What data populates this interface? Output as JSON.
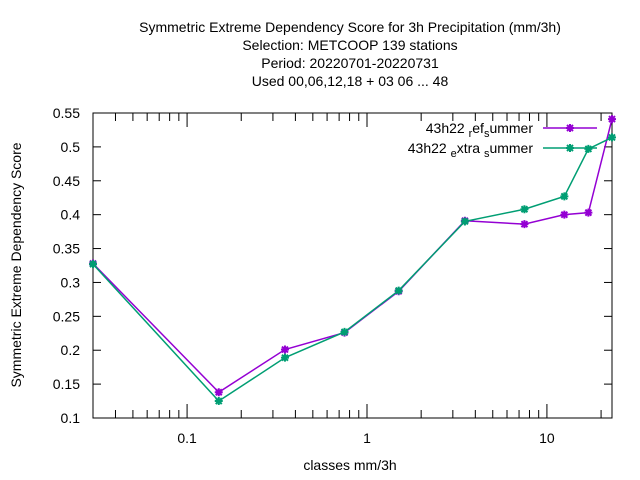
{
  "chart_data": {
    "type": "line",
    "title_lines": [
      "Symmetric Extreme Dependency Score  for 3h Precipitation (mm/3h)",
      "Selection: METCOOP    139 stations",
      "Period: 20220701-20220731",
      "Used  00,06,12,18  + 03 06 ... 48"
    ],
    "xlabel": "classes mm/3h",
    "ylabel": "Symmetric Extreme Dependency Score",
    "x_scale": "log",
    "xlim": [
      0.03,
      23
    ],
    "ylim": [
      0.1,
      0.55
    ],
    "x_ticks": [
      {
        "value": 0.1,
        "label": "0.1"
      },
      {
        "value": 1,
        "label": "1"
      },
      {
        "value": 10,
        "label": "10"
      }
    ],
    "y_ticks": [
      {
        "value": 0.1,
        "label": "0.1"
      },
      {
        "value": 0.15,
        "label": "0.15"
      },
      {
        "value": 0.2,
        "label": "0.2"
      },
      {
        "value": 0.25,
        "label": "0.25"
      },
      {
        "value": 0.3,
        "label": "0.3"
      },
      {
        "value": 0.35,
        "label": "0.35"
      },
      {
        "value": 0.4,
        "label": "0.4"
      },
      {
        "value": 0.45,
        "label": "0.45"
      },
      {
        "value": 0.5,
        "label": "0.5"
      },
      {
        "value": 0.55,
        "label": "0.55"
      }
    ],
    "grid": false,
    "legend_position": "top-right",
    "series": [
      {
        "name": "43h22 ref summer",
        "legend_parts": [
          [
            "43h22 ",
            ""
          ],
          [
            "r",
            "sub"
          ],
          [
            "ef",
            ""
          ],
          [
            "s",
            "sub"
          ],
          [
            "ummer",
            ""
          ]
        ],
        "color": "#9400d3",
        "x": [
          0.03,
          0.15,
          0.35,
          0.75,
          1.5,
          3.5,
          7.5,
          12.5,
          17,
          23
        ],
        "y": [
          0.328,
          0.138,
          0.201,
          0.226,
          0.287,
          0.391,
          0.386,
          0.4,
          0.403,
          0.541
        ]
      },
      {
        "name": "43h22 extra summer",
        "legend_parts": [
          [
            "43h22 ",
            ""
          ],
          [
            "e",
            "sub"
          ],
          [
            "xtra ",
            ""
          ],
          [
            "s",
            "sub"
          ],
          [
            "ummer",
            ""
          ]
        ],
        "color": "#009e73",
        "x": [
          0.03,
          0.15,
          0.35,
          0.75,
          1.5,
          3.5,
          7.5,
          12.5,
          17,
          23
        ],
        "y": [
          0.327,
          0.125,
          0.189,
          0.227,
          0.288,
          0.39,
          0.408,
          0.427,
          0.497,
          0.514
        ]
      }
    ]
  }
}
